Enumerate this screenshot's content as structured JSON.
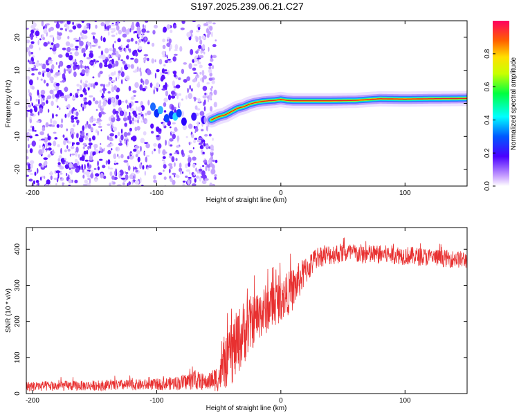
{
  "title": "S197.2025.239.06.21.C27",
  "colors": {
    "snr_line": "#e83030",
    "ridge_core": "#e02020",
    "frame": "#000000"
  },
  "chart_data": [
    {
      "type": "heatmap",
      "name": "spectrogram",
      "xlabel": "Height of straight line (km)",
      "ylabel": "Frequency (Hz)",
      "xlim": [
        -205,
        150
      ],
      "ylim": [
        -25,
        25
      ],
      "xticks": [
        -200,
        -100,
        0,
        100
      ],
      "yticks": [
        -20,
        -10,
        0,
        10,
        20
      ],
      "noise_region_km": [
        -205,
        -52
      ],
      "ridge": {
        "x": [
          -56,
          -50,
          -45,
          -40,
          -35,
          -30,
          -25,
          -20,
          -15,
          -10,
          -5,
          0,
          5,
          10,
          20,
          40,
          60,
          80,
          100,
          120,
          150
        ],
        "freq": [
          -5,
          -4,
          -3.5,
          -2.5,
          -1.5,
          -1,
          -0.2,
          0.3,
          0.6,
          0.8,
          0.9,
          1.2,
          0.9,
          0.8,
          0.8,
          0.8,
          0.9,
          1.4,
          1.3,
          1.4,
          1.5
        ]
      },
      "colorbar": {
        "label": "Normalized spectral amplitude",
        "range": [
          0,
          1
        ],
        "ticks": [
          "0.0",
          "0.2",
          "0.4",
          "0.6",
          "0.8"
        ]
      }
    },
    {
      "type": "line",
      "name": "snr",
      "xlabel": "Height of straight line (km)",
      "ylabel": "SNR (10 * v/v)",
      "xlim": [
        -205,
        150
      ],
      "ylim": [
        0,
        460
      ],
      "xticks": [
        -200,
        -100,
        0,
        100
      ],
      "yticks": [
        0,
        100,
        200,
        300,
        400
      ],
      "envelope": {
        "x": [
          -205,
          -150,
          -100,
          -80,
          -70,
          -60,
          -50,
          -40,
          -30,
          -20,
          -10,
          0,
          10,
          20,
          30,
          50,
          70,
          90,
          110,
          130,
          150
        ],
        "mean": [
          20,
          22,
          25,
          30,
          38,
          30,
          45,
          110,
          170,
          210,
          240,
          260,
          290,
          340,
          380,
          390,
          385,
          385,
          380,
          375,
          370
        ],
        "amplitude": [
          14,
          14,
          16,
          20,
          28,
          20,
          40,
          90,
          90,
          70,
          70,
          60,
          60,
          40,
          30,
          28,
          28,
          26,
          26,
          24,
          24
        ]
      }
    }
  ]
}
